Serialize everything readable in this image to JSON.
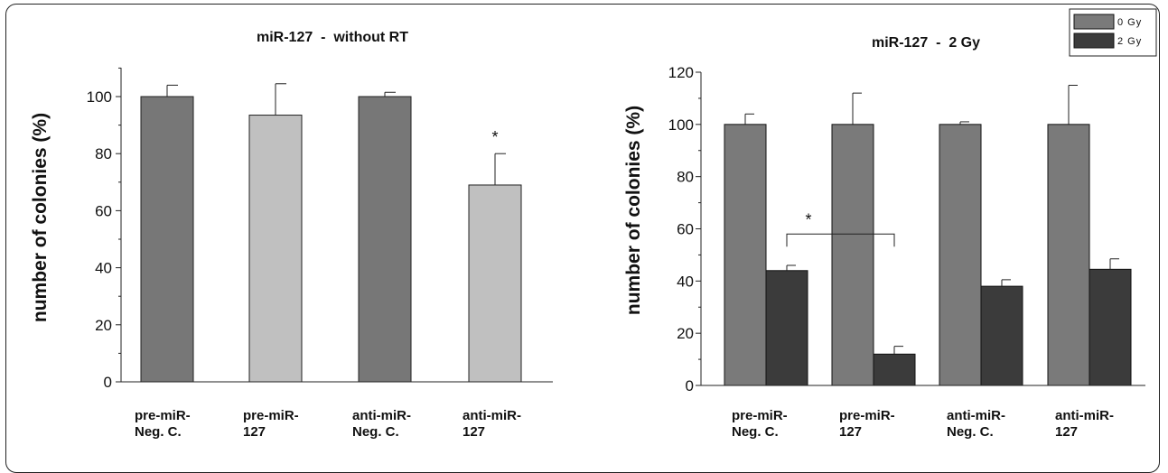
{
  "colors": {
    "dark_grey": "#777777",
    "light_grey": "#c0c0c0",
    "zero_gy": "#7a7a7a",
    "two_gy": "#3b3b3b"
  },
  "chart_data": [
    {
      "type": "bar",
      "title": "miR-127  -  without RT",
      "ylabel": "number of colonies (%)",
      "xlabel": "",
      "ylim": [
        0,
        100
      ],
      "yticks": [
        0,
        20,
        40,
        60,
        80,
        100
      ],
      "categories": [
        [
          "pre-miR-",
          "Neg. C."
        ],
        [
          "pre-miR-",
          "127"
        ],
        [
          "anti-miR-",
          "Neg. C."
        ],
        [
          "anti-miR-",
          "127"
        ]
      ],
      "values": [
        100,
        93.5,
        100,
        69
      ],
      "errors": [
        4,
        11,
        1.5,
        11
      ],
      "bar_colors": [
        "#777777",
        "#c0c0c0",
        "#777777",
        "#c0c0c0"
      ],
      "annotations": [
        {
          "text": "*",
          "category_index": 3
        }
      ],
      "grid": false,
      "legend": "none"
    },
    {
      "type": "bar",
      "title": "miR-127  -  2 Gy",
      "ylabel": "number of colonies (%)",
      "xlabel": "",
      "ylim": [
        0,
        120
      ],
      "yticks": [
        0,
        20,
        40,
        60,
        80,
        100,
        120
      ],
      "categories": [
        [
          "pre-miR-",
          "Neg. C."
        ],
        [
          "pre-miR-",
          "127"
        ],
        [
          "anti-miR-",
          "Neg. C."
        ],
        [
          "anti-miR-",
          "127"
        ]
      ],
      "series": [
        {
          "name": "0 Gy",
          "values": [
            100,
            100,
            100,
            100
          ],
          "errors": [
            4,
            12,
            1,
            15
          ],
          "color": "#7a7a7a"
        },
        {
          "name": "2 Gy",
          "values": [
            44,
            12,
            38,
            44.5
          ],
          "errors": [
            2,
            3,
            2.5,
            4
          ],
          "color": "#3b3b3b"
        }
      ],
      "annotations": [
        {
          "text": "*",
          "bracket_between": [
            0,
            1
          ],
          "series": "2 Gy",
          "level": 58
        }
      ],
      "grid": false,
      "legend": "top-right"
    }
  ]
}
